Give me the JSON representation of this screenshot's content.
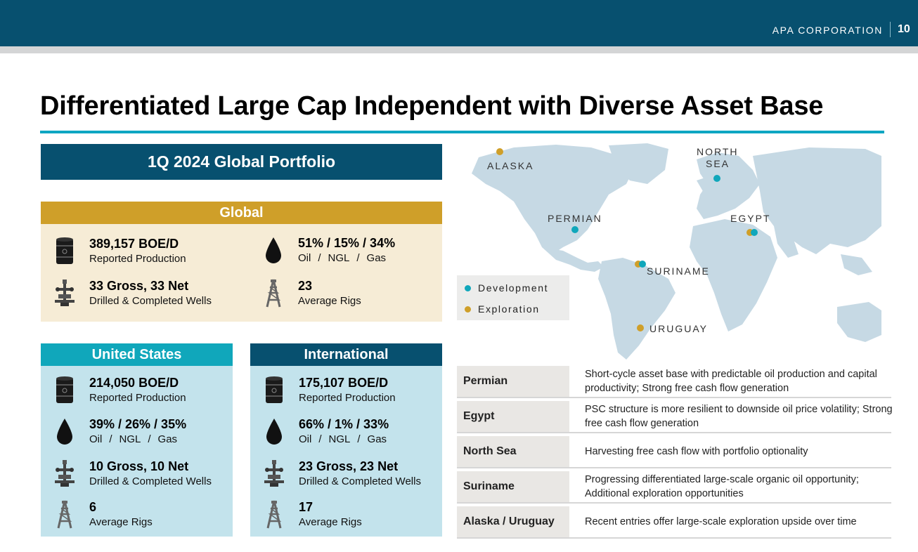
{
  "header": {
    "brand": "APA CORPORATION",
    "page_number": "10"
  },
  "title": "Differentiated Large Cap Independent with Diverse Asset Base",
  "portfolio_banner": "1Q 2024 Global Portfolio",
  "global": {
    "heading": "Global",
    "production_value": "389,157 BOE/D",
    "production_label": "Reported Production",
    "mix_value": "51% / 15% / 34%",
    "mix_oil": "Oil",
    "mix_ngl": "NGL",
    "mix_gas": "Gas",
    "mix_sep": "/",
    "wells_value": "33 Gross, 33 Net",
    "wells_label": "Drilled & Completed Wells",
    "rigs_value": "23",
    "rigs_label": "Average Rigs"
  },
  "united_states": {
    "heading": "United States",
    "production_value": "214,050 BOE/D",
    "production_label": "Reported Production",
    "mix_value": "39% / 26% / 35%",
    "mix_oil": "Oil",
    "mix_ngl": "NGL",
    "mix_gas": "Gas",
    "mix_sep": "/",
    "wells_value": "10 Gross, 10 Net",
    "wells_label": "Drilled & Completed Wells",
    "rigs_value": "6",
    "rigs_label": "Average Rigs"
  },
  "international": {
    "heading": "International",
    "production_value": "175,107 BOE/D",
    "production_label": "Reported Production",
    "mix_value": "66% / 1% / 33%",
    "mix_oil": "Oil",
    "mix_ngl": "NGL",
    "mix_gas": "Gas",
    "mix_sep": "/",
    "wells_value": "23 Gross, 23 Net",
    "wells_label": "Drilled & Completed Wells",
    "rigs_value": "17",
    "rigs_label": "Average Rigs"
  },
  "map": {
    "labels": {
      "alaska": "ALASKA",
      "north_sea_1": "NORTH",
      "north_sea_2": "SEA",
      "permian": "PERMIAN",
      "egypt": "EGYPT",
      "suriname": "SURINAME",
      "uruguay": "URUGUAY"
    },
    "legend": {
      "development": "Development",
      "exploration": "Exploration"
    },
    "colors": {
      "development": "#10a7bb",
      "exploration": "#cf9f29",
      "land": "#c6d9e4"
    }
  },
  "assets": [
    {
      "name": "Permian",
      "description": "Short-cycle asset base with predictable oil production and capital productivity; Strong free cash flow generation"
    },
    {
      "name": "Egypt",
      "description": "PSC structure is more resilient to downside oil price volatility; Strong free cash flow generation"
    },
    {
      "name": "North Sea",
      "description": "Harvesting free cash flow with portfolio optionality"
    },
    {
      "name": "Suriname",
      "description": "Progressing differentiated large-scale organic oil opportunity; Additional exploration opportunities"
    },
    {
      "name": "Alaska / Uruguay",
      "description": "Recent entries offer large-scale exploration upside over time"
    }
  ]
}
